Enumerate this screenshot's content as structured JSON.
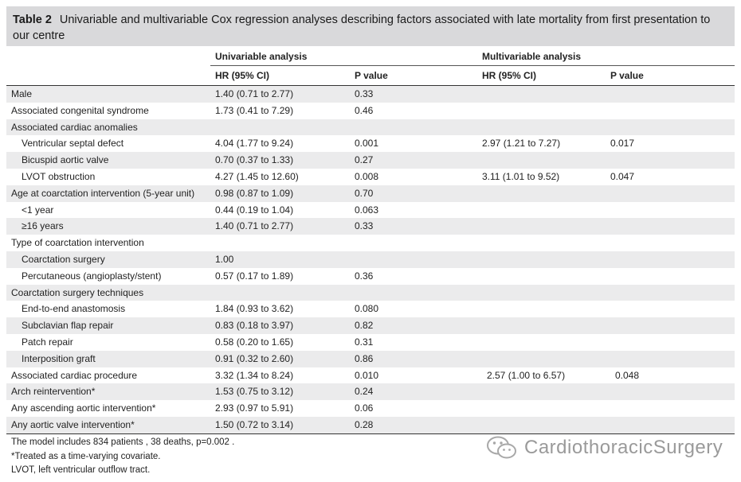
{
  "caption": {
    "label": "Table 2",
    "text": "Univariable and multivariable Cox regression analyses describing factors associated with late mortality from first presentation to our centre"
  },
  "groups": {
    "univariable": "Univariable analysis",
    "multivariable": "Multivariable analysis"
  },
  "headers": {
    "hr": "HR (95% CI)",
    "p": "P value"
  },
  "rows": [
    {
      "label": "Male",
      "uhr": "1.40 (0.71 to 2.77)",
      "up": "0.33",
      "mhr": "",
      "mp": ""
    },
    {
      "label": "Associated congenital syndrome",
      "uhr": "1.73 (0.41 to 7.29)",
      "up": "0.46",
      "mhr": "",
      "mp": ""
    },
    {
      "label": "Associated cardiac anomalies",
      "uhr": "",
      "up": "",
      "mhr": "",
      "mp": ""
    },
    {
      "label": "Ventricular septal defect",
      "uhr": "4.04 (1.77 to 9.24)",
      "up": "0.001",
      "mhr": "2.97 (1.21 to 7.27)",
      "mp": "0.017"
    },
    {
      "label": "Bicuspid aortic valve",
      "uhr": "0.70 (0.37 to 1.33)",
      "up": "0.27",
      "mhr": "",
      "mp": ""
    },
    {
      "label": "LVOT obstruction",
      "uhr": "4.27 (1.45 to 12.60)",
      "up": "0.008",
      "mhr": "3.11 (1.01 to 9.52)",
      "mp": "0.047"
    },
    {
      "label": "Age at coarctation intervention (5-year unit)",
      "uhr": "0.98 (0.87 to 1.09)",
      "up": "0.70",
      "mhr": "",
      "mp": ""
    },
    {
      "label": "<1 year",
      "uhr": "0.44 (0.19 to 1.04)",
      "up": "0.063",
      "mhr": "",
      "mp": ""
    },
    {
      "label": "≥16 years",
      "uhr": "1.40 (0.71 to 2.77)",
      "up": "0.33",
      "mhr": "",
      "mp": ""
    },
    {
      "label": "Type of coarctation intervention",
      "uhr": "",
      "up": "",
      "mhr": "",
      "mp": ""
    },
    {
      "label": "Coarctation surgery",
      "uhr": "1.00",
      "up": "",
      "mhr": "",
      "mp": ""
    },
    {
      "label": "Percutaneous (angioplasty/stent)",
      "uhr": "0.57 (0.17 to 1.89)",
      "up": "0.36",
      "mhr": "",
      "mp": ""
    },
    {
      "label": "Coarctation surgery techniques",
      "uhr": "",
      "up": "",
      "mhr": "",
      "mp": ""
    },
    {
      "label": "End-to-end anastomosis",
      "uhr": "1.84 (0.93 to 3.62)",
      "up": "0.080",
      "mhr": "",
      "mp": ""
    },
    {
      "label": "Subclavian flap repair",
      "uhr": "0.83 (0.18 to 3.97)",
      "up": "0.82",
      "mhr": "",
      "mp": ""
    },
    {
      "label": "Patch repair",
      "uhr": "0.58 (0.20 to 1.65)",
      "up": "0.31",
      "mhr": "",
      "mp": ""
    },
    {
      "label": "Interposition graft",
      "uhr": "0.91 (0.32 to 2.60)",
      "up": "0.86",
      "mhr": "",
      "mp": ""
    },
    {
      "label": "Associated cardiac procedure",
      "uhr": "3.32 (1.34 to 8.24)",
      "up": "0.010",
      "mhr": "2.57 (1.00 to 6.57)",
      "mp": "0.048"
    },
    {
      "label": "Arch reintervention*",
      "uhr": "1.53 (0.75 to 3.12)",
      "up": "0.24",
      "mhr": "",
      "mp": ""
    },
    {
      "label": "Any ascending aortic intervention*",
      "uhr": "2.93 (0.97 to 5.91)",
      "up": "0.06",
      "mhr": "",
      "mp": ""
    },
    {
      "label": "Any aortic valve intervention*",
      "uhr": "1.50 (0.72 to 3.14)",
      "up": "0.28",
      "mhr": "",
      "mp": ""
    }
  ],
  "footnotes": [
    "The model includes 834  patients , 38 deaths,  p=0.002 .",
    "*Treated as a time-varying covariate.",
    "LVOT, left ventricular outflow tract."
  ],
  "watermark": {
    "text": "CardiothoracicSurgery",
    "icon": "wechat-icon"
  }
}
